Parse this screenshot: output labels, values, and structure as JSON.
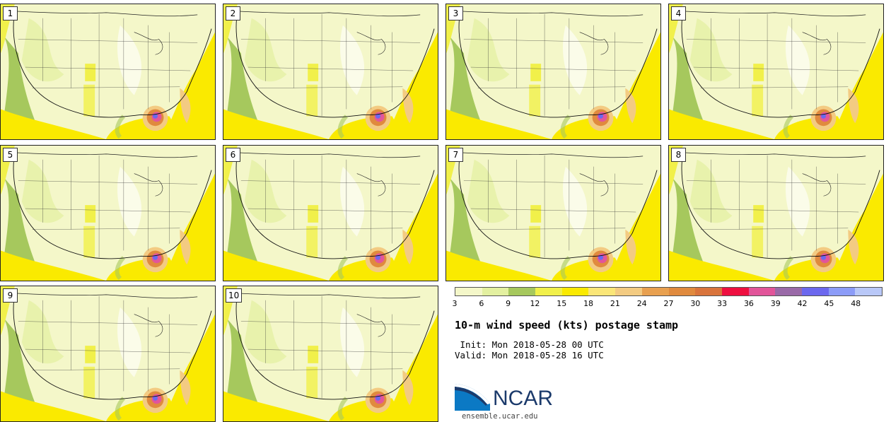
{
  "panels": [
    {
      "label": "1",
      "storm": "pink"
    },
    {
      "label": "2",
      "storm": "pink"
    },
    {
      "label": "3",
      "storm": "pink"
    },
    {
      "label": "4",
      "storm": "pink"
    },
    {
      "label": "5",
      "storm": "pink"
    },
    {
      "label": "6",
      "storm": "pink"
    },
    {
      "label": "7",
      "storm": "pink"
    },
    {
      "label": "8",
      "storm": "pink"
    },
    {
      "label": "9",
      "storm": "pink"
    },
    {
      "label": "10",
      "storm": "pink"
    }
  ],
  "colorbar": {
    "ticks": [
      "3",
      "6",
      "9",
      "12",
      "15",
      "18",
      "21",
      "24",
      "27",
      "30",
      "33",
      "36",
      "39",
      "42",
      "45",
      "48"
    ],
    "colors": [
      "#f4f7c9",
      "#e3f0a0",
      "#a6c85d",
      "#f1f04a",
      "#faea00",
      "#fae678",
      "#f3cb82",
      "#e8a050",
      "#e08a3e",
      "#d9743c",
      "#ee1040",
      "#e2559a",
      "#9a6aa8",
      "#6c68ee",
      "#8c9cf8",
      "#b9c8f8"
    ]
  },
  "title": "10-m wind speed (kts) postage stamp",
  "init_line": " Init: Mon 2018-05-28 00 UTC",
  "valid_line": "Valid: Mon 2018-05-28 16 UTC",
  "logo": {
    "text": "NCAR",
    "url": "ensemble.ucar.edu"
  }
}
